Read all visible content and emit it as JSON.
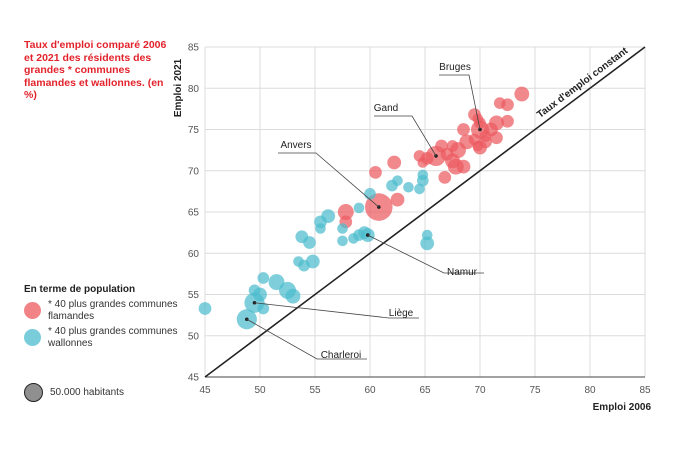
{
  "colors": {
    "title": "#e3232c",
    "flemish": "#ec5a5f",
    "walloon": "#4cbccd",
    "size_ref": "#8f8f8f",
    "grid": "#dcdcdc",
    "diagonal": "#222222"
  },
  "chart_data": {
    "type": "scatter",
    "title": "Taux d'emploi comparé 2006 et 2021 des résidents des grandes * communes flamandes et wallonnes. (en %)",
    "xlabel": "Emploi 2006",
    "ylabel": "Emploi 2021",
    "xlim": [
      45,
      85
    ],
    "ylim": [
      45,
      85
    ],
    "xticks": [
      "45",
      "50",
      "55",
      "60",
      "65",
      "70",
      "75",
      "80",
      "85"
    ],
    "yticks": [
      "45",
      "50",
      "55",
      "60",
      "65",
      "70",
      "75",
      "80",
      "85"
    ],
    "grid": true,
    "diagonal_label": "Taux d'emploi constant",
    "legend": {
      "title": "En terme de population",
      "items": [
        {
          "label": "* 40 plus grandes communes flamandes",
          "color": "#ec5a5f"
        },
        {
          "label": "* 40 plus grandes communes wallonnes",
          "color": "#4cbccd"
        }
      ],
      "size_reference": "50.000 habitants"
    },
    "annotations": [
      {
        "label": "Bruges",
        "x": 70.0,
        "y": 75.0
      },
      {
        "label": "Gand",
        "x": 66.0,
        "y": 71.8
      },
      {
        "label": "Anvers",
        "x": 60.8,
        "y": 65.6
      },
      {
        "label": "Namur",
        "x": 59.8,
        "y": 62.2
      },
      {
        "label": "Liège",
        "x": 49.5,
        "y": 54.0
      },
      {
        "label": "Charleroi",
        "x": 48.8,
        "y": 52.0
      }
    ],
    "series": [
      {
        "name": "* 40 plus grandes communes flamandes",
        "color": "#ec5a5f",
        "points": [
          {
            "x": 73.8,
            "y": 79.3,
            "s": 1.4
          },
          {
            "x": 72.5,
            "y": 78.0,
            "s": 1.2
          },
          {
            "x": 71.8,
            "y": 78.2,
            "s": 1.1
          },
          {
            "x": 69.5,
            "y": 76.8,
            "s": 1.2
          },
          {
            "x": 69.8,
            "y": 76.3,
            "s": 1.0
          },
          {
            "x": 70.0,
            "y": 75.8,
            "s": 1.1
          },
          {
            "x": 71.5,
            "y": 75.8,
            "s": 1.4
          },
          {
            "x": 72.5,
            "y": 76.0,
            "s": 1.2
          },
          {
            "x": 68.5,
            "y": 75.0,
            "s": 1.2
          },
          {
            "x": 70.0,
            "y": 75.0,
            "s": 1.7
          },
          {
            "x": 71.0,
            "y": 75.0,
            "s": 1.3
          },
          {
            "x": 70.5,
            "y": 74.2,
            "s": 1.1
          },
          {
            "x": 71.5,
            "y": 74.0,
            "s": 1.2
          },
          {
            "x": 69.5,
            "y": 73.8,
            "s": 1.1
          },
          {
            "x": 68.8,
            "y": 73.5,
            "s": 1.4
          },
          {
            "x": 70.5,
            "y": 73.5,
            "s": 1.2
          },
          {
            "x": 69.8,
            "y": 73.0,
            "s": 1.0
          },
          {
            "x": 67.5,
            "y": 73.0,
            "s": 1.1
          },
          {
            "x": 66.5,
            "y": 73.0,
            "s": 1.2
          },
          {
            "x": 70.0,
            "y": 72.8,
            "s": 1.3
          },
          {
            "x": 68.0,
            "y": 72.5,
            "s": 1.5
          },
          {
            "x": 67.0,
            "y": 72.0,
            "s": 1.2
          },
          {
            "x": 64.5,
            "y": 71.8,
            "s": 1.1
          },
          {
            "x": 65.2,
            "y": 71.5,
            "s": 1.2
          },
          {
            "x": 66.0,
            "y": 71.8,
            "s": 1.9
          },
          {
            "x": 62.2,
            "y": 71.0,
            "s": 1.3
          },
          {
            "x": 67.5,
            "y": 71.2,
            "s": 1.4
          },
          {
            "x": 68.5,
            "y": 70.5,
            "s": 1.3
          },
          {
            "x": 67.8,
            "y": 70.5,
            "s": 1.5
          },
          {
            "x": 64.8,
            "y": 71.0,
            "s": 1.0
          },
          {
            "x": 60.5,
            "y": 69.8,
            "s": 1.2
          },
          {
            "x": 66.8,
            "y": 69.2,
            "s": 1.2
          },
          {
            "x": 62.5,
            "y": 66.5,
            "s": 1.3
          },
          {
            "x": 57.8,
            "y": 65.0,
            "s": 1.5
          },
          {
            "x": 57.8,
            "y": 63.8,
            "s": 1.2
          },
          {
            "x": 60.8,
            "y": 65.6,
            "s": 2.6
          }
        ]
      },
      {
        "name": "* 40 plus grandes communes wallonnes",
        "color": "#4cbccd",
        "points": [
          {
            "x": 64.8,
            "y": 69.5,
            "s": 1.0
          },
          {
            "x": 64.8,
            "y": 68.8,
            "s": 1.1
          },
          {
            "x": 63.5,
            "y": 68.0,
            "s": 1.0
          },
          {
            "x": 62.5,
            "y": 68.8,
            "s": 1.0
          },
          {
            "x": 62.0,
            "y": 68.2,
            "s": 1.1
          },
          {
            "x": 64.5,
            "y": 67.8,
            "s": 1.0
          },
          {
            "x": 60.0,
            "y": 67.2,
            "s": 1.1
          },
          {
            "x": 59.0,
            "y": 65.5,
            "s": 1.0
          },
          {
            "x": 56.2,
            "y": 64.5,
            "s": 1.3
          },
          {
            "x": 55.5,
            "y": 63.8,
            "s": 1.2
          },
          {
            "x": 55.5,
            "y": 63.0,
            "s": 1.0
          },
          {
            "x": 57.5,
            "y": 63.0,
            "s": 1.0
          },
          {
            "x": 59.0,
            "y": 62.2,
            "s": 1.1
          },
          {
            "x": 59.5,
            "y": 62.5,
            "s": 1.2
          },
          {
            "x": 59.8,
            "y": 62.2,
            "s": 1.3
          },
          {
            "x": 58.5,
            "y": 61.8,
            "s": 1.0
          },
          {
            "x": 57.5,
            "y": 61.5,
            "s": 1.0
          },
          {
            "x": 53.8,
            "y": 62.0,
            "s": 1.2
          },
          {
            "x": 54.5,
            "y": 61.3,
            "s": 1.2
          },
          {
            "x": 65.2,
            "y": 62.2,
            "s": 1.0
          },
          {
            "x": 65.2,
            "y": 61.2,
            "s": 1.3
          },
          {
            "x": 53.5,
            "y": 59.0,
            "s": 1.0
          },
          {
            "x": 54.0,
            "y": 58.5,
            "s": 1.1
          },
          {
            "x": 54.8,
            "y": 59.0,
            "s": 1.3
          },
          {
            "x": 50.3,
            "y": 57.0,
            "s": 1.1
          },
          {
            "x": 51.5,
            "y": 56.5,
            "s": 1.5
          },
          {
            "x": 52.5,
            "y": 55.5,
            "s": 1.6
          },
          {
            "x": 53.0,
            "y": 54.8,
            "s": 1.4
          },
          {
            "x": 49.5,
            "y": 55.5,
            "s": 1.1
          },
          {
            "x": 50.0,
            "y": 55.0,
            "s": 1.3
          },
          {
            "x": 50.3,
            "y": 53.3,
            "s": 1.1
          },
          {
            "x": 45.0,
            "y": 53.3,
            "s": 1.2
          },
          {
            "x": 49.5,
            "y": 54.0,
            "s": 1.9
          },
          {
            "x": 48.8,
            "y": 52.0,
            "s": 1.9
          }
        ]
      }
    ]
  }
}
